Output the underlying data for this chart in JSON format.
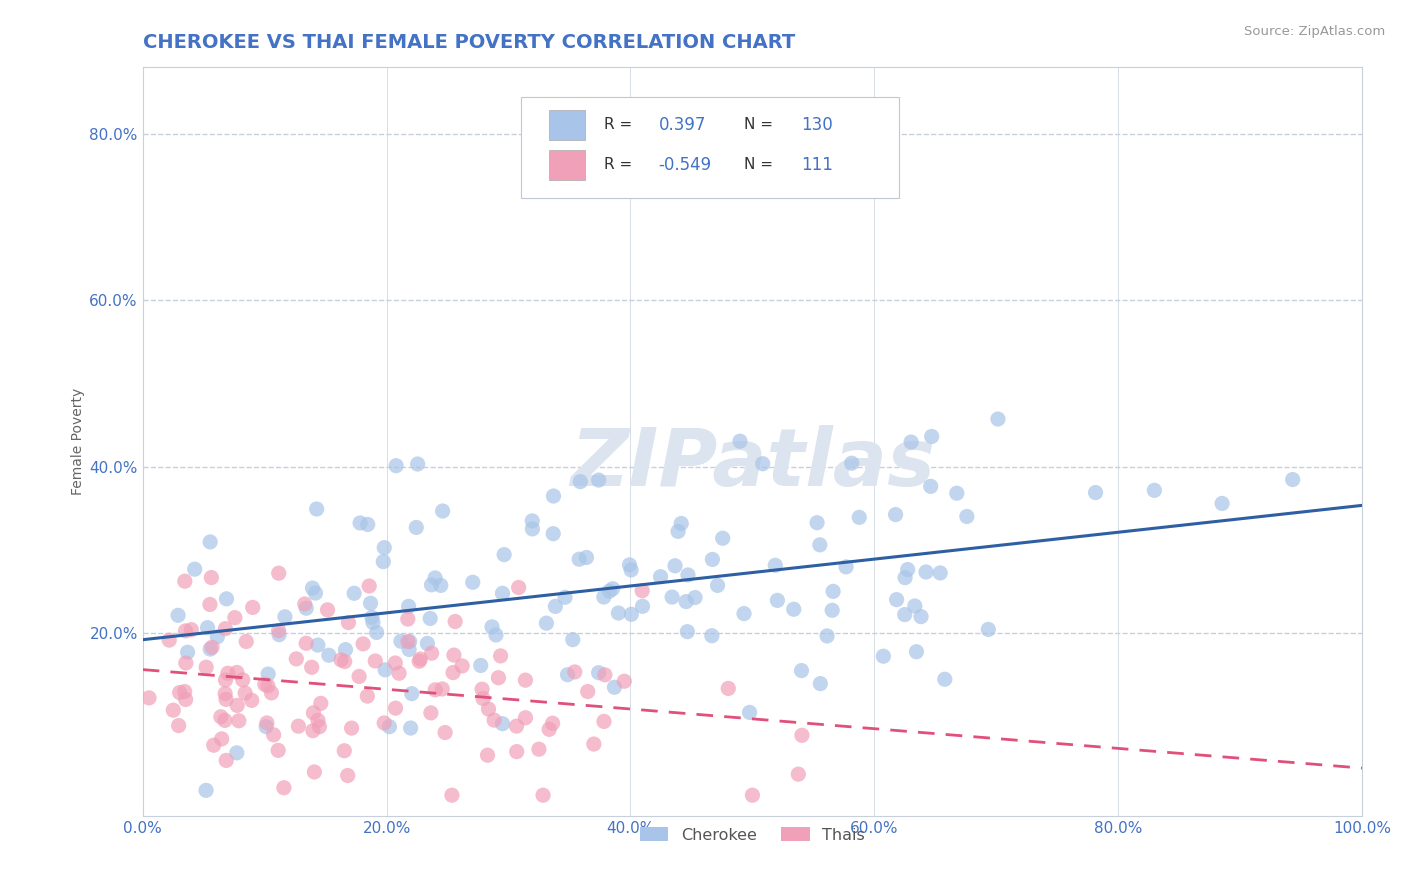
{
  "title": "CHEROKEE VS THAI FEMALE POVERTY CORRELATION CHART",
  "source": "Source: ZipAtlas.com",
  "ylabel": "Female Poverty",
  "xlim": [
    0.0,
    1.0
  ],
  "ylim": [
    -0.02,
    0.88
  ],
  "yticks": [
    0.0,
    0.2,
    0.4,
    0.6,
    0.8
  ],
  "ytick_labels": [
    "",
    "20.0%",
    "40.0%",
    "60.0%",
    "80.0%"
  ],
  "xticks": [
    0.0,
    0.2,
    0.4,
    0.6,
    0.8,
    1.0
  ],
  "xtick_labels": [
    "0.0%",
    "20.0%",
    "40.0%",
    "60.0%",
    "80.0%",
    "100.0%"
  ],
  "cherokee_color": "#a8c4e8",
  "thais_color": "#f0a0b8",
  "cherokee_line_color": "#2e5fa3",
  "thais_line_color": "#e0507a",
  "cherokee_R": 0.397,
  "cherokee_N": 130,
  "thais_R": -0.549,
  "thais_N": 111,
  "background_color": "#ffffff",
  "grid_color": "#c8d0dc",
  "tick_color": "#4472c4",
  "source_color": "#999999",
  "watermark_color": "#dce4ef",
  "title_color": "#4472c4",
  "legend_text_color": "#4472c4"
}
